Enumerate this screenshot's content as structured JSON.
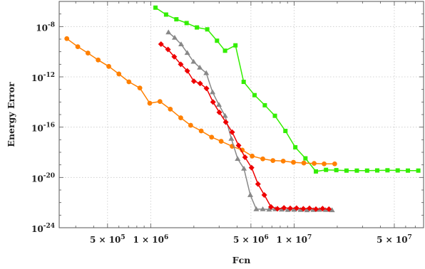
{
  "chart_data": {
    "type": "line",
    "title": "",
    "xlabel": "Fcn",
    "ylabel": "Energy Error",
    "x_scale": "log",
    "y_scale": "log",
    "xlim": [
      230000,
      80000000
    ],
    "ylim": [
      1e-24,
      1e-06
    ],
    "grid": true,
    "legend": "none",
    "x_ticks": [
      {
        "value": 500000,
        "mant": "5",
        "exp": "5"
      },
      {
        "value": 1000000,
        "mant": "1",
        "exp": "6"
      },
      {
        "value": 5000000,
        "mant": "5",
        "exp": "6"
      },
      {
        "value": 10000000,
        "mant": "1",
        "exp": "7"
      },
      {
        "value": 50000000,
        "mant": "5",
        "exp": "7"
      }
    ],
    "y_ticks": [
      {
        "value": 1e-08,
        "exp": "-8"
      },
      {
        "value": 1e-12,
        "exp": "-12"
      },
      {
        "value": 1e-16,
        "exp": "-16"
      },
      {
        "value": 1e-20,
        "exp": "-20"
      },
      {
        "value": 1e-24,
        "exp": "-24"
      }
    ],
    "series": [
      {
        "color": "#33ee00",
        "marker": "square",
        "x": [
          1080000,
          1280000,
          1510000,
          1780000,
          2100000,
          2480000,
          2900000,
          3300000,
          3900000,
          4450000,
          5300000,
          6250000,
          7350000,
          8700000,
          10200000,
          12000000,
          14200000,
          16700000,
          19700000,
          23200000,
          27400000,
          32300000,
          38000000,
          44800000,
          52800000,
          62200000,
          73500000
        ],
        "y": [
          3.2e-07,
          9e-08,
          3.8e-08,
          1.9e-08,
          8.5e-09,
          6e-09,
          7.5e-10,
          1.2e-10,
          3.2e-10,
          4e-13,
          3.5e-14,
          5.5e-15,
          8e-16,
          5e-17,
          2.5e-18,
          3.3e-19,
          3e-20,
          4e-20,
          3.8e-20,
          3.5e-20,
          3.5e-20,
          3.5e-20,
          3.6e-20,
          3.7e-20,
          3.6e-20,
          3.5e-20,
          3.5e-20
        ]
      },
      {
        "color": "#ff8000",
        "marker": "circle",
        "x": [
          260000,
          310000,
          365000,
          430000,
          510000,
          600000,
          705000,
          840000,
          985000,
          1160000,
          1370000,
          1620000,
          1900000,
          2250000,
          2660000,
          3100000,
          3700000,
          4350000,
          5100000,
          6050000,
          7120000,
          8400000,
          9900000,
          11700000,
          13800000,
          16200000,
          19200000
        ],
        "y": [
          1.1e-09,
          2.5e-10,
          7.8e-11,
          2.2e-11,
          6.8e-12,
          1.7e-12,
          4e-13,
          1.3e-13,
          8e-15,
          1.1e-14,
          2.7e-15,
          5.5e-16,
          1.4e-16,
          5e-17,
          1.6e-17,
          7.5e-18,
          3e-18,
          1.5e-18,
          5e-19,
          3e-19,
          2.2e-19,
          2e-19,
          1.6e-19,
          1.4e-19,
          1.3e-19,
          1.2e-19,
          1.2e-19
        ]
      },
      {
        "color": "#888888",
        "marker": "triangle",
        "x": [
          1330000,
          1470000,
          1630000,
          1800000,
          1990000,
          2200000,
          2440000,
          2700000,
          2990000,
          3300000,
          3650000,
          4040000,
          4470000,
          4950000,
          5450000,
          6050000,
          6700000,
          7400000,
          8200000,
          9050000,
          10000000,
          11100000,
          12300000,
          13600000,
          15000000,
          16600000,
          18400000
        ],
        "y": [
          3.5e-09,
          1.3e-09,
          3.9e-10,
          8e-11,
          1.6e-11,
          5.5e-12,
          2e-12,
          6e-14,
          6e-15,
          8e-16,
          1.2e-17,
          3e-19,
          5e-20,
          4e-22,
          3e-23,
          3e-23,
          2.8e-23,
          3e-23,
          2.8e-23,
          2.6e-23,
          2.7e-23,
          2.6e-23,
          2.5e-23,
          2.6e-23,
          2.7e-23,
          2.6e-23,
          2.5e-23
        ]
      },
      {
        "color": "#ee0000",
        "marker": "diamond",
        "x": [
          1180000,
          1320000,
          1460000,
          1620000,
          1800000,
          2000000,
          2210000,
          2450000,
          2720000,
          3010000,
          3340000,
          3700000,
          4100000,
          4550000,
          5050000,
          5600000,
          6200000,
          6900000,
          7650000,
          8500000,
          9400000,
          10400000,
          11600000,
          12800000,
          14200000,
          15800000,
          17500000
        ],
        "y": [
          4e-10,
          1.5e-10,
          4e-11,
          1e-11,
          3e-12,
          4.5e-13,
          3e-13,
          1.2e-13,
          1e-14,
          1.5e-15,
          2.5e-16,
          4e-17,
          3.5e-18,
          4e-19,
          6e-20,
          3e-21,
          4e-22,
          4.5e-23,
          3.2e-23,
          3.8e-23,
          3.5e-23,
          3.6e-23,
          3.2e-23,
          3.5e-23,
          3e-23,
          3.3e-23,
          3e-23
        ]
      }
    ]
  }
}
